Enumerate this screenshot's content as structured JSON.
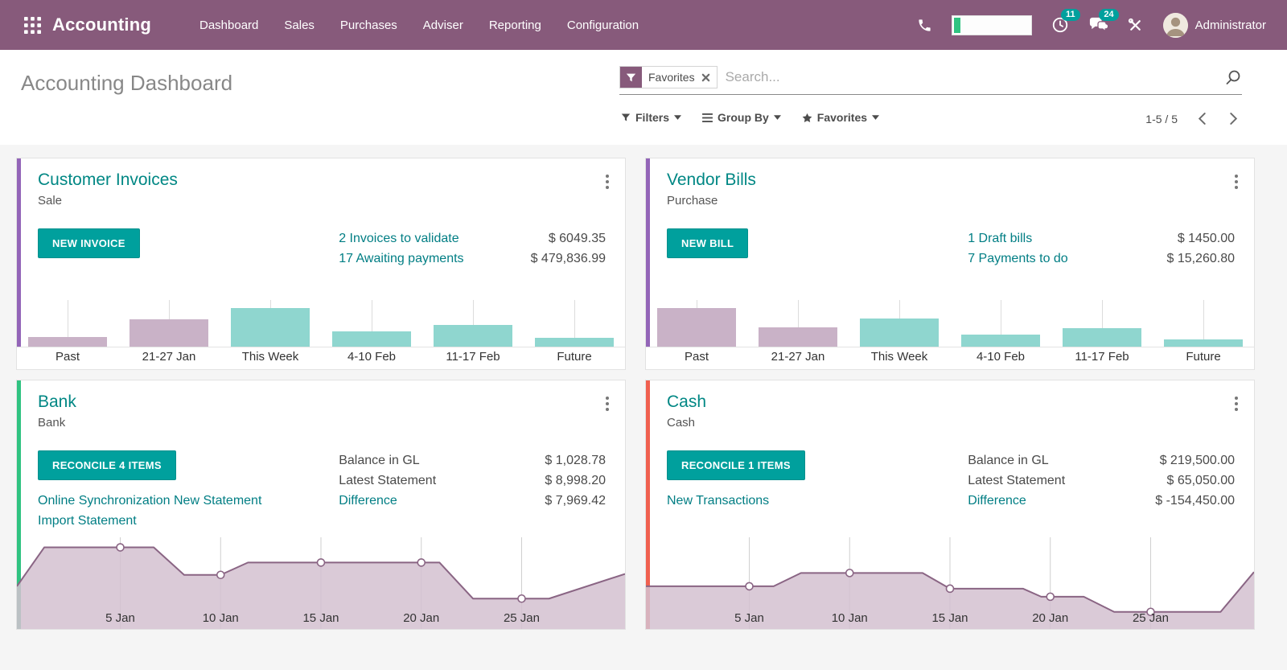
{
  "colors": {
    "brand_purple": "#875A7B",
    "accent_teal": "#00A09D",
    "link_teal": "#017E84",
    "bar_past": "#C9B2C7",
    "bar_current": "#8FD6CF",
    "line_stroke": "#8A6584",
    "line_fill": "#D3C1D0",
    "stripe_violet": "#9365B8",
    "stripe_green": "#30C381",
    "stripe_red": "#F06050"
  },
  "navbar": {
    "brand": "Accounting",
    "menu": [
      "Dashboard",
      "Sales",
      "Purchases",
      "Adviser",
      "Reporting",
      "Configuration"
    ],
    "activity_count": "11",
    "message_count": "24",
    "user": "Administrator"
  },
  "control_panel": {
    "title": "Accounting Dashboard",
    "search": {
      "facet": "Favorites",
      "placeholder": "Search..."
    },
    "buttons": {
      "filters": "Filters",
      "group_by": "Group By",
      "favorites": "Favorites"
    },
    "pager": {
      "value": "1-5 / 5"
    }
  },
  "cards": {
    "customer_invoices": {
      "title": "Customer Invoices",
      "subtitle": "Sale",
      "stripe": "#9365B8",
      "button": "NEW INVOICE",
      "stats": [
        {
          "label": "2 Invoices to validate",
          "amount": "$ 6049.35"
        },
        {
          "label": "17 Awaiting payments",
          "amount": "$ 479,836.99"
        }
      ],
      "chart": {
        "type": "bar",
        "categories": [
          "Past",
          "21-27 Jan",
          "This Week",
          "4-10 Feb",
          "11-17 Feb",
          "Future"
        ],
        "values": [
          25,
          70,
          100,
          39,
          57,
          22
        ],
        "period": [
          "past",
          "past",
          "now",
          "now",
          "now",
          "now"
        ]
      }
    },
    "vendor_bills": {
      "title": "Vendor Bills",
      "subtitle": "Purchase",
      "stripe": "#9365B8",
      "button": "NEW BILL",
      "stats": [
        {
          "label": "1 Draft bills",
          "amount": "$ 1450.00"
        },
        {
          "label": "7 Payments to do",
          "amount": "$ 15,260.80"
        }
      ],
      "chart": {
        "type": "bar",
        "categories": [
          "Past",
          "21-27 Jan",
          "This Week",
          "4-10 Feb",
          "11-17 Feb",
          "Future"
        ],
        "values": [
          100,
          49,
          72,
          31,
          47,
          18
        ],
        "period": [
          "past",
          "past",
          "now",
          "now",
          "now",
          "now"
        ]
      }
    },
    "bank": {
      "title": "Bank",
      "subtitle": "Bank",
      "stripe": "#30C381",
      "button": "RECONCILE 4 ITEMS",
      "links": [
        "Online Synchronization",
        "New Statement",
        "Import Statement"
      ],
      "stats": [
        {
          "label": "Balance in GL",
          "amount": "$ 1,028.78",
          "link": false
        },
        {
          "label": "Latest Statement",
          "amount": "$ 8,998.20",
          "link": false
        },
        {
          "label": "Difference",
          "amount": "$ 7,969.42",
          "link": true
        }
      ],
      "chart": {
        "type": "area",
        "x_labels": [
          "5 Jan",
          "10 Jan",
          "15 Jan",
          "20 Jan",
          "25 Jan"
        ],
        "tick_x": [
          0.17,
          0.335,
          0.5,
          0.665,
          0.83
        ],
        "points": [
          [
            0,
            0.55
          ],
          [
            0.045,
            0.14
          ],
          [
            0.17,
            0.14
          ],
          [
            0.225,
            0.14
          ],
          [
            0.275,
            0.43
          ],
          [
            0.335,
            0.43
          ],
          [
            0.38,
            0.3
          ],
          [
            0.5,
            0.3
          ],
          [
            0.665,
            0.3
          ],
          [
            0.695,
            0.3
          ],
          [
            0.75,
            0.68
          ],
          [
            0.83,
            0.68
          ],
          [
            0.875,
            0.68
          ],
          [
            1,
            0.42
          ]
        ],
        "markers": [
          [
            0.17,
            0.14
          ],
          [
            0.335,
            0.43
          ],
          [
            0.5,
            0.3
          ],
          [
            0.665,
            0.3
          ],
          [
            0.83,
            0.68
          ]
        ]
      }
    },
    "cash": {
      "title": "Cash",
      "subtitle": "Cash",
      "stripe": "#F06050",
      "button": "RECONCILE 1 ITEMS",
      "links": [
        "New Transactions"
      ],
      "stats": [
        {
          "label": "Balance in GL",
          "amount": "$ 219,500.00",
          "link": false
        },
        {
          "label": "Latest Statement",
          "amount": "$ 65,050.00",
          "link": false
        },
        {
          "label": "Difference",
          "amount": "$ -154,450.00",
          "link": true
        }
      ],
      "chart": {
        "type": "area",
        "x_labels": [
          "5 Jan",
          "10 Jan",
          "15 Jan",
          "20 Jan",
          "25 Jan"
        ],
        "tick_x": [
          0.17,
          0.335,
          0.5,
          0.665,
          0.83
        ],
        "points": [
          [
            0,
            0.55
          ],
          [
            0.17,
            0.55
          ],
          [
            0.21,
            0.55
          ],
          [
            0.255,
            0.41
          ],
          [
            0.335,
            0.41
          ],
          [
            0.455,
            0.41
          ],
          [
            0.5,
            0.575
          ],
          [
            0.62,
            0.575
          ],
          [
            0.65,
            0.66
          ],
          [
            0.665,
            0.66
          ],
          [
            0.72,
            0.66
          ],
          [
            0.77,
            0.82
          ],
          [
            0.83,
            0.82
          ],
          [
            0.945,
            0.82
          ],
          [
            1,
            0.4
          ]
        ],
        "markers": [
          [
            0.17,
            0.55
          ],
          [
            0.335,
            0.41
          ],
          [
            0.5,
            0.575
          ],
          [
            0.665,
            0.66
          ],
          [
            0.83,
            0.82
          ]
        ]
      }
    }
  }
}
